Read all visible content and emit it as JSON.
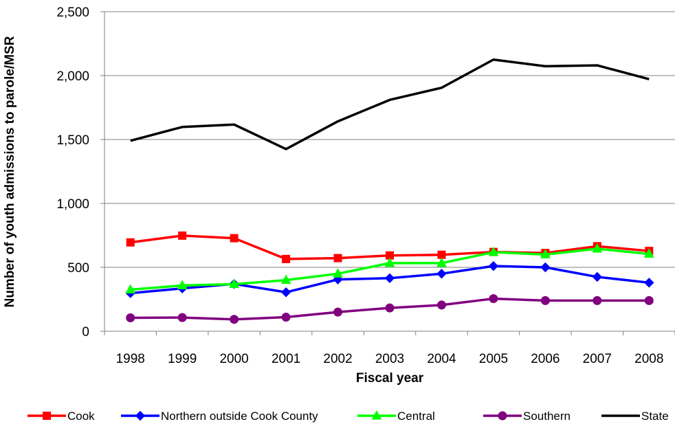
{
  "chart_data": {
    "type": "line",
    "title": "",
    "xlabel": "Fiscal year",
    "ylabel": "Number of youth admissions to parole/MSR",
    "ylim": [
      0,
      2500
    ],
    "yticks": [
      "0",
      "500",
      "1,000",
      "1,500",
      "2,000",
      "2,500"
    ],
    "ytick_values": [
      0,
      500,
      1000,
      1500,
      2000,
      2500
    ],
    "categories": [
      "1998",
      "1999",
      "2000",
      "2001",
      "2002",
      "2003",
      "2004",
      "2005",
      "2006",
      "2007",
      "2008"
    ],
    "grid": true,
    "legend_position": "bottom",
    "series": [
      {
        "name": "Cook",
        "color": "#ff0000",
        "marker": "square",
        "values": [
          695,
          748,
          728,
          565,
          572,
          593,
          598,
          620,
          612,
          665,
          628
        ]
      },
      {
        "name": "Northern outside Cook County",
        "color": "#0000ff",
        "marker": "diamond",
        "values": [
          298,
          335,
          370,
          305,
          405,
          415,
          450,
          510,
          500,
          425,
          380
        ]
      },
      {
        "name": "Central",
        "color": "#00ff00",
        "marker": "triangle",
        "values": [
          325,
          358,
          368,
          400,
          450,
          533,
          533,
          618,
          600,
          645,
          605
        ]
      },
      {
        "name": "Southern",
        "color": "#800080",
        "marker": "circle",
        "values": [
          105,
          107,
          93,
          110,
          150,
          182,
          205,
          255,
          240,
          240,
          240
        ]
      },
      {
        "name": "State",
        "color": "#000000",
        "marker": "none",
        "values": [
          1490,
          1598,
          1617,
          1425,
          1642,
          1810,
          1905,
          2125,
          2073,
          2080,
          1972
        ]
      }
    ]
  }
}
